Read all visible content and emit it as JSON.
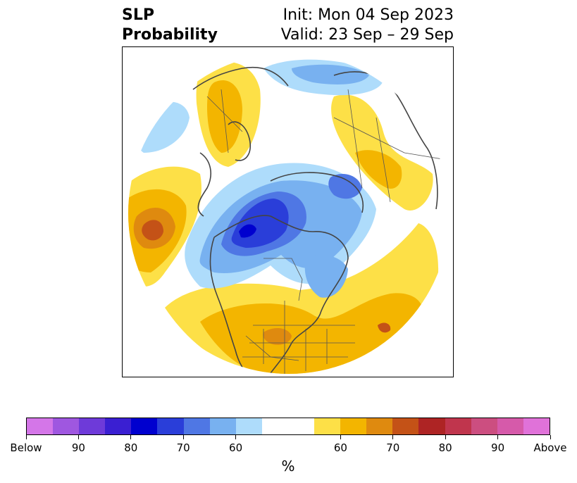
{
  "title": {
    "left": [
      "SLP",
      "Probability"
    ],
    "right_init": "Init: Mon 04 Sep 2023",
    "right_valid": "Valid: 23 Sep – 29 Sep"
  },
  "map": {
    "projection": "north-polar-stereographic",
    "region": "Northern Hemisphere",
    "layers": [
      "sea-level-pressure-probability",
      "coastlines",
      "country-borders",
      "us-state-borders"
    ]
  },
  "colorbar": {
    "colors": [
      "#d476e8",
      "#9f57e0",
      "#6e3ad9",
      "#3a1fd2",
      "#0000cf",
      "#2a3ed9",
      "#4f77e4",
      "#78b1f0",
      "#aedcfb",
      "#ffffff",
      "#ffffff",
      "#fde047",
      "#f3b500",
      "#df8a0f",
      "#c45217",
      "#ae2424",
      "#c0354d",
      "#cc4e80",
      "#d65aaa",
      "#e072d9"
    ],
    "tick_labels": [
      "Below",
      "90",
      "80",
      "70",
      "60",
      "60",
      "70",
      "80",
      "90",
      "Above"
    ],
    "unit_label": "%"
  }
}
